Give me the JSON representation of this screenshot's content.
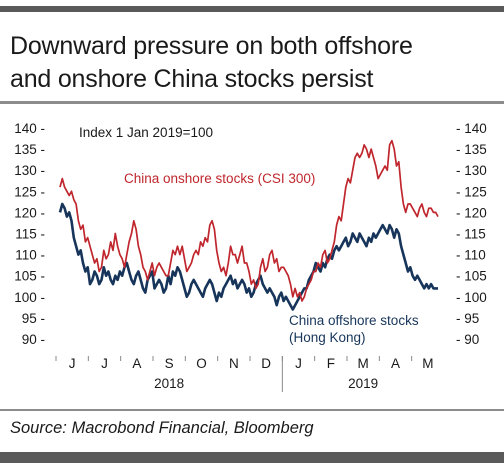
{
  "title_line1": "Downward pressure on both offshore",
  "title_line2": "and onshore China stocks persist",
  "source": "Source: Macrobond Financial, Bloomberg",
  "chart_data": {
    "type": "line",
    "annotation": "Index 1 Jan 2019=100",
    "ylim": [
      90,
      140
    ],
    "yticks": [
      90,
      95,
      100,
      105,
      110,
      115,
      120,
      125,
      130,
      135,
      140
    ],
    "month_labels": [
      "J",
      "J",
      "A",
      "S",
      "O",
      "N",
      "D",
      "J",
      "F",
      "M",
      "A",
      "M"
    ],
    "year_labels": [
      "2018",
      "2019"
    ],
    "grid": false,
    "series": [
      {
        "name": "China onshore stocks (CSI 300)",
        "color": "#c0262d",
        "values": [
          126,
          128,
          126,
          125,
          124,
          125,
          123,
          122,
          118,
          116,
          117,
          113,
          114,
          112,
          110,
          108,
          109,
          106,
          107,
          111,
          109,
          110,
          113,
          111,
          115,
          112,
          110,
          109,
          107,
          110,
          113,
          115,
          118,
          116,
          112,
          110,
          107,
          106,
          104,
          106,
          108,
          105,
          107,
          108,
          107,
          106,
          105,
          105,
          108,
          111,
          110,
          112,
          110,
          112,
          109,
          106,
          107,
          108,
          110,
          111,
          110,
          113,
          112,
          114,
          113,
          117,
          118,
          116,
          111,
          108,
          106,
          107,
          105,
          108,
          112,
          110,
          110,
          108,
          110,
          112,
          108,
          108,
          106,
          103,
          104,
          102,
          103,
          107,
          109,
          106,
          107,
          110,
          111,
          108,
          109,
          106,
          107,
          107,
          106,
          105,
          103,
          100,
          102,
          100,
          101,
          99,
          100,
          102,
          103,
          104,
          106,
          106,
          108,
          107,
          110,
          111,
          108,
          109,
          111,
          113,
          117,
          119,
          118,
          122,
          126,
          128,
          127,
          130,
          133,
          134,
          133,
          134,
          136,
          135,
          133,
          135,
          133,
          131,
          128,
          129,
          130,
          131,
          130,
          136,
          137,
          135,
          131,
          132,
          126,
          122,
          120,
          122,
          122,
          121,
          120,
          119,
          121,
          122,
          120,
          119,
          121,
          121,
          120,
          120,
          119
        ]
      },
      {
        "name": "China offshore stocks (Hong Kong)",
        "color": "#17355a",
        "values": [
          120,
          122,
          121,
          119,
          120,
          118,
          114,
          112,
          110,
          111,
          108,
          106,
          107,
          103,
          104,
          106,
          105,
          103,
          104,
          107,
          105,
          106,
          104,
          103,
          105,
          104,
          106,
          105,
          107,
          108,
          106,
          104,
          103,
          105,
          106,
          104,
          102,
          101,
          104,
          105,
          106,
          102,
          103,
          104,
          103,
          101,
          102,
          105,
          103,
          106,
          105,
          107,
          106,
          104,
          102,
          100,
          101,
          103,
          104,
          103,
          102,
          101,
          100,
          102,
          103,
          104,
          103,
          101,
          99,
          101,
          100,
          102,
          103,
          104,
          105,
          103,
          104,
          102,
          103,
          104,
          103,
          101,
          102,
          100,
          101,
          103,
          104,
          105,
          103,
          102,
          101,
          102,
          101,
          100,
          98,
          100,
          101,
          99,
          100,
          99,
          98,
          97,
          98,
          99,
          100,
          101,
          102,
          102,
          104,
          105,
          106,
          108,
          107,
          106,
          108,
          107,
          109,
          110,
          109,
          111,
          112,
          111,
          112,
          113,
          114,
          112,
          113,
          115,
          114,
          113,
          115,
          114,
          113,
          112,
          114,
          113,
          115,
          114,
          115,
          116,
          117,
          116,
          115,
          117,
          116,
          114,
          116,
          115,
          112,
          110,
          108,
          106,
          107,
          105,
          104,
          105,
          104,
          103,
          102,
          103,
          102,
          103,
          102,
          102,
          102
        ]
      }
    ]
  }
}
